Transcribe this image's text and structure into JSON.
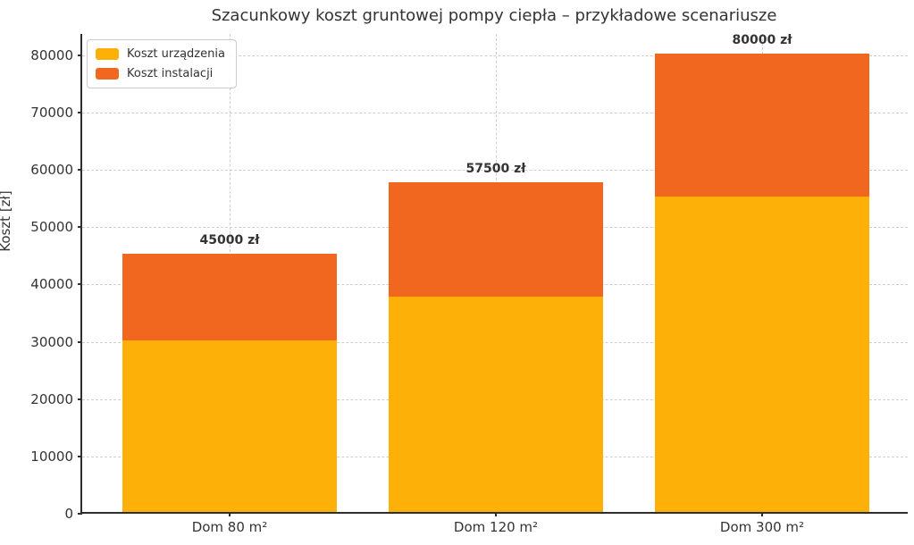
{
  "chart_data": {
    "type": "bar",
    "stacked": true,
    "title": "Szacunkowy koszt gruntowej pompy ciepła – przykładowe scenariusze",
    "xlabel": "",
    "ylabel": "Koszt [zł]",
    "categories": [
      "Dom 80 m²",
      "Dom 120 m²",
      "Dom 300 m²"
    ],
    "series": [
      {
        "name": "Koszt urządzenia",
        "color": "#FDB108",
        "values": [
          30000,
          37500,
          55000
        ]
      },
      {
        "name": "Koszt instalacji",
        "color": "#F2671F",
        "values": [
          15000,
          20000,
          25000
        ]
      }
    ],
    "totals": [
      45000,
      57500,
      80000
    ],
    "total_labels": [
      "45000 zł",
      "57500 zł",
      "80000 zł"
    ],
    "yticks": [
      0,
      10000,
      20000,
      30000,
      40000,
      50000,
      60000,
      70000,
      80000
    ],
    "ylim": [
      0,
      83700
    ],
    "grid": {
      "horizontal": true,
      "vertical": true,
      "style": "dashed",
      "color": "#cfcfcf"
    },
    "legend": {
      "position": "upper-left"
    },
    "colors": {
      "device_bar": "#FDB108",
      "install_bar": "#F2671F",
      "text": "#333333",
      "spine": "#2e2e2e",
      "background": "#ffffff"
    }
  }
}
